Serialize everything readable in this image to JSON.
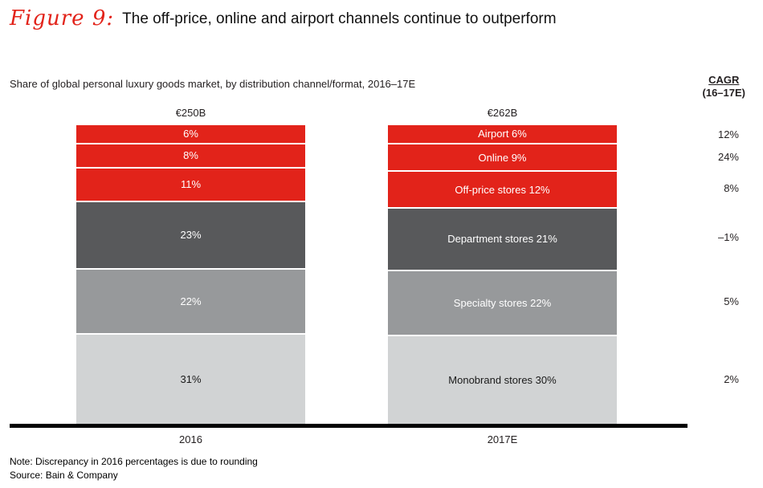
{
  "figure": {
    "label": "Figure 9:",
    "title": "The off-price, online and airport channels continue to outperform"
  },
  "subtitle": "Share of global personal luxury goods market, by distribution channel/format, 2016–17E",
  "cagr_header": {
    "line1": "CAGR",
    "line2": "(16–17E)"
  },
  "note": "Note: Discrepancy in 2016 percentages is due to rounding",
  "source": "Source: Bain & Company",
  "colors": {
    "accent_red": "#e2231a",
    "dark_gray": "#58595b",
    "mid_gray": "#97999b",
    "light_gray": "#d1d3d4",
    "axis": "#000000"
  },
  "chart_data": {
    "type": "bar",
    "subtype": "stacked-percent",
    "title": "Share of global personal luxury goods market, by distribution channel/format, 2016–17E",
    "categories": [
      "2016",
      "2017E"
    ],
    "totals": [
      "€250B",
      "€262B"
    ],
    "ylim": [
      0,
      100
    ],
    "grid": false,
    "legend_position": "labels-in-bar",
    "segments": [
      {
        "name": "Airport",
        "value_2016": 6,
        "value_2017": 6,
        "label_2016": "6%",
        "label_2017": "Airport 6%",
        "cagr": "12%",
        "color": "#e2231a",
        "text_color": "#ffffff"
      },
      {
        "name": "Online",
        "value_2016": 8,
        "value_2017": 9,
        "label_2016": "8%",
        "label_2017": "Online 9%",
        "cagr": "24%",
        "color": "#e2231a",
        "text_color": "#ffffff"
      },
      {
        "name": "Off-price stores",
        "value_2016": 11,
        "value_2017": 12,
        "label_2016": "11%",
        "label_2017": "Off-price stores 12%",
        "cagr": "8%",
        "color": "#e2231a",
        "text_color": "#ffffff"
      },
      {
        "name": "Department stores",
        "value_2016": 23,
        "value_2017": 21,
        "label_2016": "23%",
        "label_2017": "Department stores 21%",
        "cagr": "–1%",
        "color": "#58595b",
        "text_color": "#ffffff"
      },
      {
        "name": "Specialty stores",
        "value_2016": 22,
        "value_2017": 22,
        "label_2016": "22%",
        "label_2017": "Specialty stores 22%",
        "cagr": "5%",
        "color": "#97999b",
        "text_color": "#ffffff"
      },
      {
        "name": "Monobrand stores",
        "value_2016": 31,
        "value_2017": 30,
        "label_2016": "31%",
        "label_2017": "Monobrand stores 30%",
        "cagr": "2%",
        "color": "#d1d3d4",
        "text_color": "#1a1a1a"
      }
    ]
  }
}
